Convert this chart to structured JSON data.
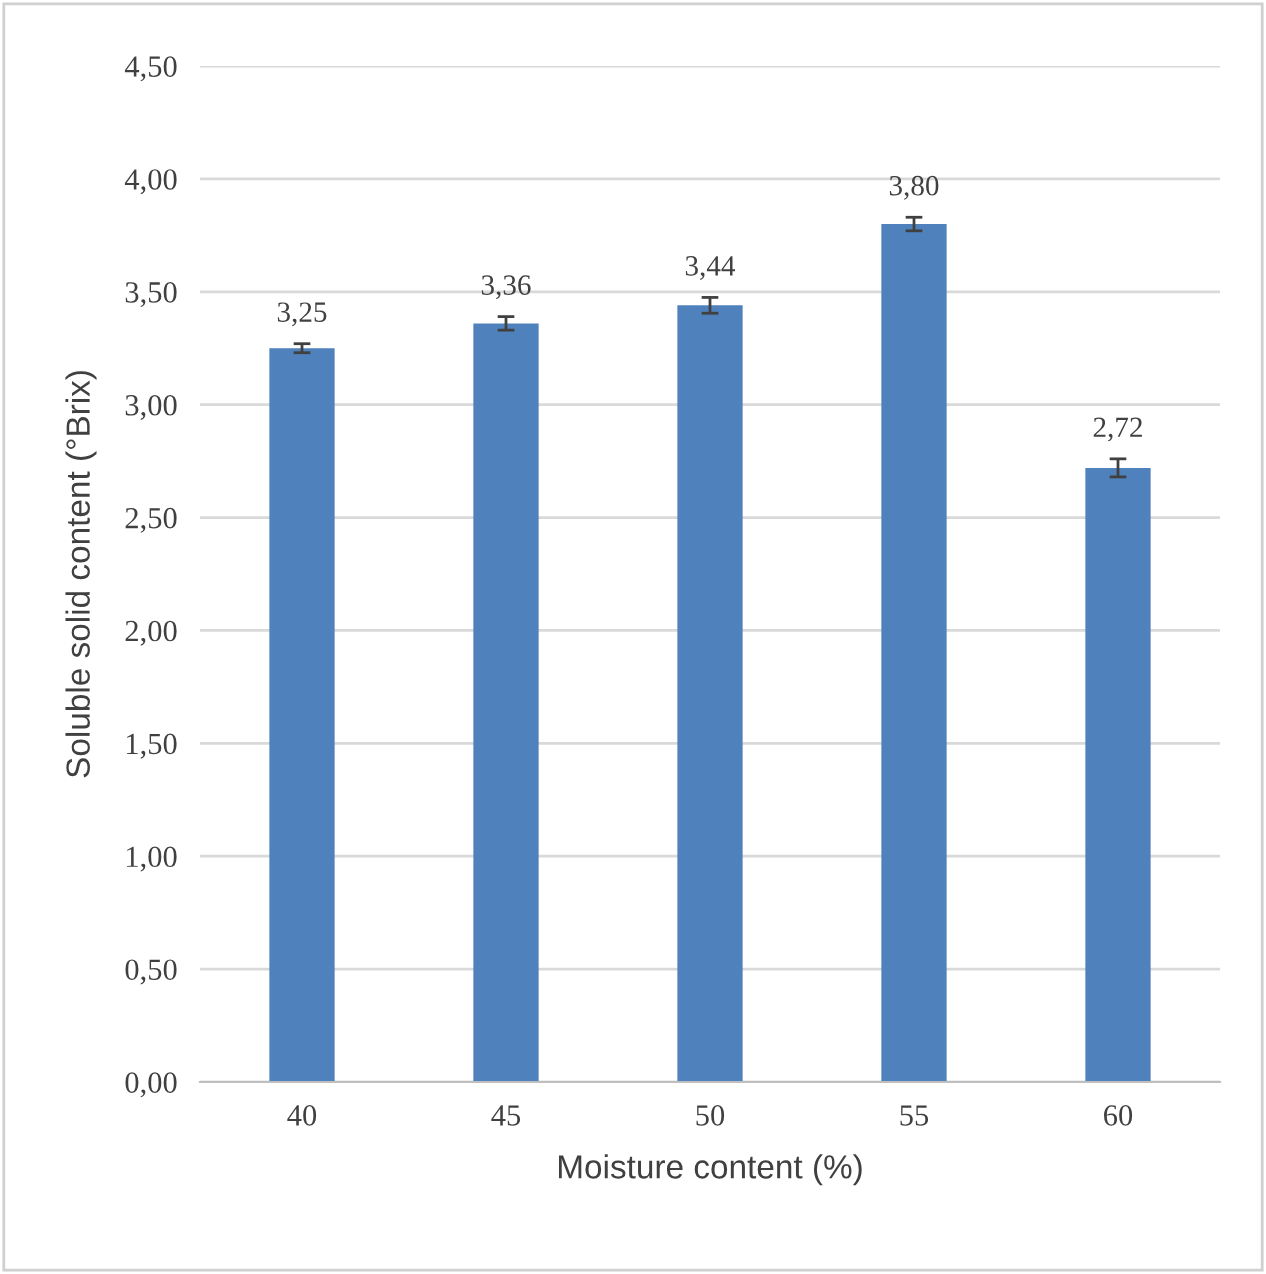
{
  "chart_data": {
    "type": "bar",
    "xlabel": "Moisture content (%)",
    "ylabel": "Soluble solid content (°Brix)",
    "categories": [
      "40",
      "45",
      "50",
      "55",
      "60"
    ],
    "values": [
      3.25,
      3.36,
      3.44,
      3.8,
      2.72
    ],
    "errors": [
      0.02,
      0.03,
      0.035,
      0.03,
      0.04
    ],
    "value_labels": [
      "3,25",
      "3,36",
      "3,44",
      "3,80",
      "2,72"
    ],
    "color": "#4f81bd",
    "ylim": [
      0,
      4.5
    ],
    "yticks": [
      {
        "value": 0,
        "label": "0,00"
      },
      {
        "value": 0.5,
        "label": "0,50"
      },
      {
        "value": 1,
        "label": "1,00"
      },
      {
        "value": 1.5,
        "label": "1,50"
      },
      {
        "value": 2,
        "label": "2,00"
      },
      {
        "value": 2.5,
        "label": "2,50"
      },
      {
        "value": 3,
        "label": "3,00"
      },
      {
        "value": 3.5,
        "label": "3,50"
      },
      {
        "value": 4,
        "label": "4,00"
      },
      {
        "value": 4.5,
        "label": "4,50"
      }
    ],
    "grid": "y"
  }
}
